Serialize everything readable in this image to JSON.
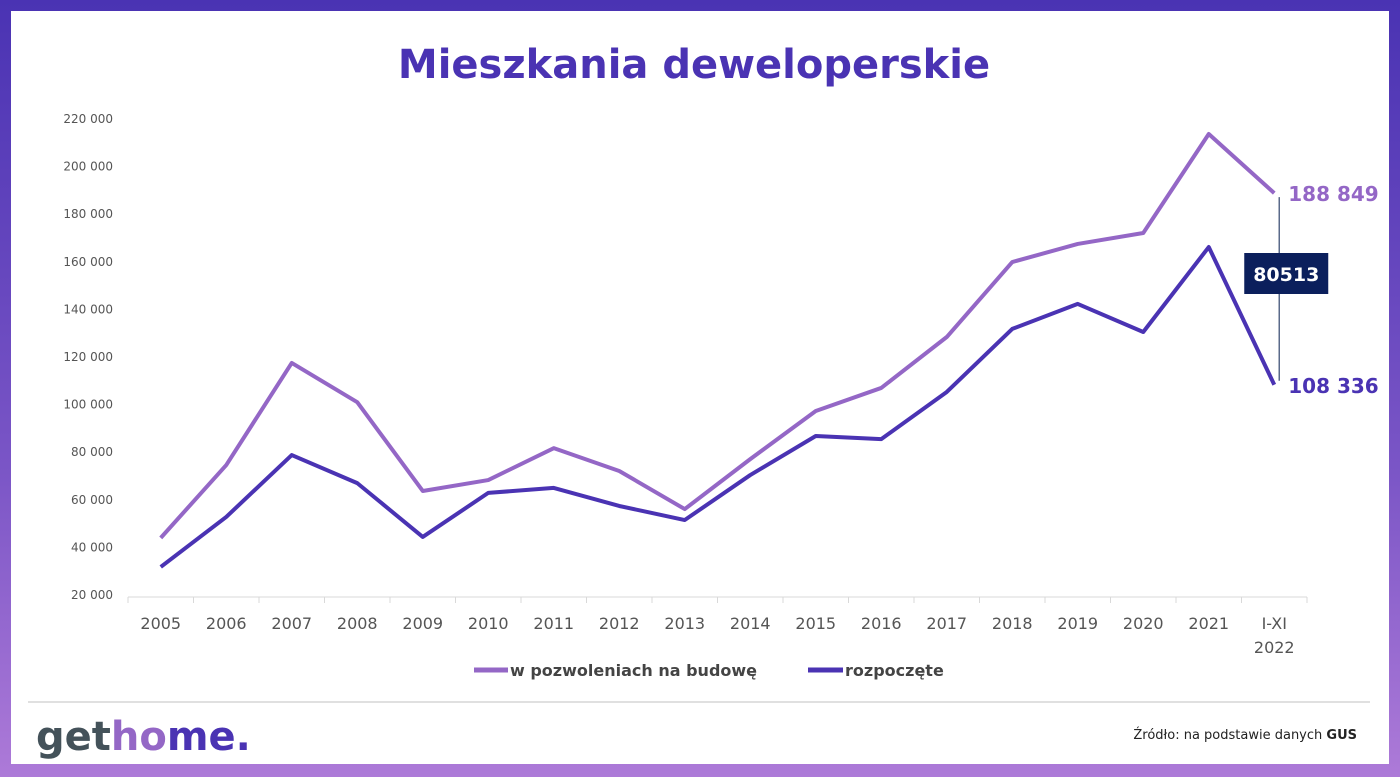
{
  "chart_data": {
    "type": "line",
    "title": "Mieszkania deweloperskie",
    "categories": [
      "2005",
      "2006",
      "2007",
      "2008",
      "2009",
      "2010",
      "2011",
      "2012",
      "2013",
      "2014",
      "2015",
      "2016",
      "2017",
      "2018",
      "2019",
      "2020",
      "2021",
      "I-XI 2022"
    ],
    "ylim": [
      20000,
      220000
    ],
    "yticks": [
      "20 000",
      "40 000",
      "60 000",
      "80 000",
      "100 000",
      "120 000",
      "140 000",
      "160 000",
      "180 000",
      "200 000",
      "220 000"
    ],
    "ytick_values": [
      20000,
      40000,
      60000,
      80000,
      100000,
      120000,
      140000,
      160000,
      180000,
      200000,
      220000
    ],
    "grid": false,
    "legend": "bottom",
    "series": [
      {
        "name": "w pozwoleniach na budowę",
        "color": "#9467c6",
        "values": [
          44000,
          74600,
          117500,
          101000,
          63700,
          68300,
          81700,
          72100,
          56100,
          77100,
          97300,
          107000,
          128400,
          159900,
          167500,
          172100,
          213700,
          188849
        ],
        "end_label": "188 849"
      },
      {
        "name": "rozpoczęte",
        "color": "#4a33b3",
        "values": [
          31800,
          52800,
          78800,
          67000,
          44400,
          62900,
          65000,
          57400,
          51500,
          70400,
          86800,
          85500,
          105300,
          131800,
          142300,
          130500,
          166200,
          108336
        ],
        "end_label": "108 336"
      }
    ],
    "annotation": {
      "label": "80513",
      "color": "#0b1f5c"
    }
  },
  "footer": {
    "logo": "gethome.",
    "source_prefix": "Źródło: na podstawie danych ",
    "source_bold": "GUS"
  }
}
